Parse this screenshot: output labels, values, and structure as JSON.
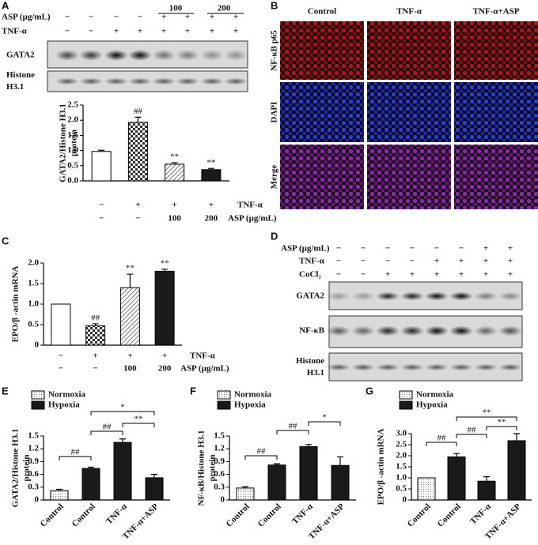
{
  "chart_data": [
    {
      "panel": "A",
      "type": "bar",
      "ylabel": [
        "GATA2/Histone H3.1",
        "protein"
      ],
      "values": [
        0.97,
        1.93,
        0.55,
        0.37
      ],
      "errors": [
        0.04,
        0.17,
        0.05,
        0.04
      ],
      "fills": [
        "#ffffff",
        "checker",
        "hatch",
        "#1a1a1a"
      ],
      "bar_labels": [
        null,
        "##",
        "**",
        "**"
      ],
      "conditions": [
        {
          "name": "TNF-α",
          "values": [
            "−",
            "+",
            "+",
            "+"
          ]
        },
        {
          "name": "ASP (μg/mL)",
          "values": [
            "−",
            "−",
            "100",
            "200"
          ]
        }
      ],
      "ylim": [
        0,
        2.5
      ],
      "yticks": [
        {
          "value": 0,
          "label": "0.0"
        },
        0.5,
        {
          "value": 1,
          "label": "1.0"
        },
        1.5,
        {
          "value": 2,
          "label": "2.0"
        },
        2.5
      ]
    },
    {
      "panel": "C",
      "type": "bar",
      "ylabel": [
        "EPO/β -actin mRNA"
      ],
      "values": [
        1.0,
        0.47,
        1.4,
        1.8
      ],
      "errors": [
        0,
        0.05,
        0.33,
        0.05
      ],
      "fills": [
        "#ffffff",
        "checker",
        "hatch",
        "#1a1a1a"
      ],
      "bar_labels": [
        null,
        "##",
        "**",
        "**"
      ],
      "conditions": [
        {
          "name": "TNF-α",
          "values": [
            "−",
            "+",
            "+",
            "+"
          ]
        },
        {
          "name": "ASP (μg/mL)",
          "values": [
            "−",
            "−",
            "100",
            "200"
          ]
        }
      ],
      "ylim": [
        0,
        2
      ],
      "yticks": [
        0,
        0.5,
        {
          "value": 1,
          "label": "1.0"
        },
        1.5,
        {
          "value": 2,
          "label": "2.0"
        }
      ]
    },
    {
      "panel": "E",
      "type": "bar",
      "ylabel": [
        "GATA2/Histone H3.1",
        "protein"
      ],
      "categories": [
        "Control",
        "Control",
        "TNF-α",
        "TNF-α+ASP"
      ],
      "series": [
        {
          "name": "Normoxia",
          "fill": "dots",
          "values": [
            0.22,
            null,
            null,
            null
          ],
          "errors": [
            0.03,
            null,
            null,
            null
          ]
        },
        {
          "name": "Hypoxia",
          "fill": "#1a1a1a",
          "values": [
            null,
            0.74,
            1.35,
            0.52
          ],
          "errors": [
            null,
            0.03,
            0.08,
            0.08
          ]
        }
      ],
      "annotations": [
        "##",
        "##",
        "*",
        "**"
      ],
      "ylim": [
        0,
        1.5
      ],
      "yticks": [
        0,
        0.3,
        0.6,
        0.9,
        1.2,
        1.5
      ]
    },
    {
      "panel": "F",
      "type": "bar",
      "ylabel": [
        "NF-κB/Histone H3.1",
        "protein"
      ],
      "categories": [
        "Control",
        "Control",
        "TNF-α",
        "TNF-α+ASP"
      ],
      "series": [
        {
          "name": "Normoxia",
          "fill": "dots",
          "values": [
            0.28,
            null,
            null,
            null
          ],
          "errors": [
            0.03,
            null,
            null,
            null
          ]
        },
        {
          "name": "Hypoxia",
          "fill": "#1a1a1a",
          "values": [
            null,
            0.82,
            1.25,
            0.81
          ],
          "errors": [
            null,
            0.03,
            0.05,
            0.2
          ]
        }
      ],
      "annotations": [
        "##",
        "##",
        "*"
      ],
      "ylim": [
        0,
        1.5
      ],
      "yticks": [
        0,
        0.3,
        0.6,
        0.9,
        1.2,
        1.5
      ]
    },
    {
      "panel": "G",
      "type": "bar",
      "ylabel": [
        "EPO/β -actin mRNA"
      ],
      "categories": [
        "Control",
        "Control",
        "TNF-α",
        "TNF-α+ASP"
      ],
      "series": [
        {
          "name": "Normoxia",
          "fill": "dots",
          "values": [
            1.0,
            null,
            null,
            null
          ],
          "errors": [
            0,
            null,
            null,
            null
          ]
        },
        {
          "name": "Hypoxia",
          "fill": "#1a1a1a",
          "values": [
            null,
            1.95,
            0.85,
            2.68
          ],
          "errors": [
            null,
            0.15,
            0.2,
            0.32
          ]
        }
      ],
      "annotations": [
        "##",
        "##",
        "**",
        "**"
      ],
      "ylim": [
        0,
        3
      ],
      "yticks": [
        0,
        0.5,
        {
          "value": 1,
          "label": "1.0"
        },
        1.5,
        {
          "value": 2,
          "label": "2.0"
        },
        2.5,
        {
          "value": 3,
          "label": "3.0"
        }
      ]
    }
  ],
  "blots": [
    {
      "panel": "A",
      "header": [
        {
          "name": "ASP (μg/mL)",
          "values": [
            "−",
            "−",
            "−",
            "−",
            "+",
            "+",
            "+",
            "+"
          ]
        },
        {
          "name": "TNF-α",
          "values": [
            "−",
            "−",
            "+",
            "+",
            "+",
            "+",
            "+",
            "+"
          ]
        }
      ],
      "groups": [
        "100",
        "200"
      ],
      "bands": [
        [
          "GATA2"
        ],
        [
          "Histone",
          "H3.1"
        ]
      ]
    },
    {
      "panel": "D",
      "header": [
        {
          "name": "ASP (μg/mL)",
          "values": [
            "−",
            "−",
            "−",
            "−",
            "−",
            "−",
            "+",
            "+"
          ]
        },
        {
          "name": "TNF-α",
          "values": [
            "−",
            "−",
            "−",
            "−",
            "+",
            "+",
            "+",
            "+"
          ]
        },
        {
          "name": "CoCl₂",
          "values": [
            "−",
            "−",
            "+",
            "+",
            "+",
            "+",
            "+",
            "+"
          ]
        }
      ],
      "bands": [
        [
          "GATA2"
        ],
        [
          "NF-κB"
        ],
        [
          "Histone",
          "H3.1"
        ]
      ]
    }
  ],
  "images": {
    "panel": "B",
    "columns": [
      "Control",
      "TNF-α",
      "TNF-α+ASP"
    ],
    "rows": [
      "NF-κB p65",
      "DAPI",
      "Merge"
    ]
  }
}
